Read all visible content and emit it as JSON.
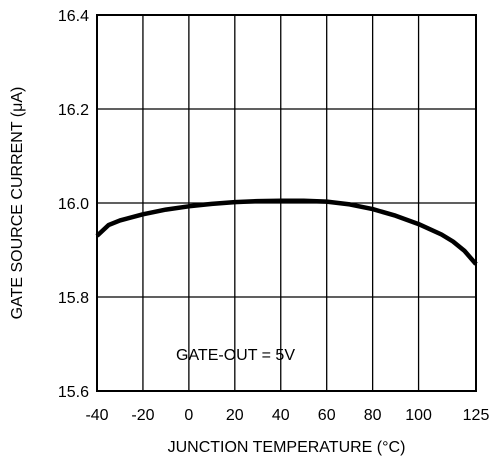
{
  "chart_data": {
    "type": "line",
    "title": "",
    "xlabel": "JUNCTION TEMPERATURE (°C)",
    "ylabel": "GATE SOURCE CURRENT (μA)",
    "xlim": [
      -40,
      125
    ],
    "ylim": [
      15.6,
      16.4
    ],
    "x_ticks": [
      -40,
      -20,
      0,
      20,
      40,
      60,
      80,
      100,
      125
    ],
    "x_tick_labels": [
      "-40",
      "-20",
      "0",
      "20",
      "40",
      "60",
      "80",
      "100",
      "125"
    ],
    "y_ticks": [
      15.6,
      15.8,
      16.0,
      16.2,
      16.4
    ],
    "y_tick_labels": [
      "15.6",
      "15.8",
      "16.0",
      "16.2",
      "16.4"
    ],
    "grid": true,
    "annotation": "GATE-OUT = 5V",
    "series": [
      {
        "x": [
          -40,
          -35,
          -30,
          -20,
          -10,
          0,
          10,
          20,
          30,
          40,
          50,
          60,
          70,
          80,
          90,
          100,
          110,
          115,
          120,
          125
        ],
        "y": [
          15.93,
          15.953,
          15.963,
          15.976,
          15.986,
          15.993,
          15.998,
          16.002,
          16.004,
          16.005,
          16.005,
          16.003,
          15.997,
          15.987,
          15.973,
          15.955,
          15.933,
          15.918,
          15.898,
          15.87
        ]
      }
    ],
    "line_color": "#000000"
  }
}
